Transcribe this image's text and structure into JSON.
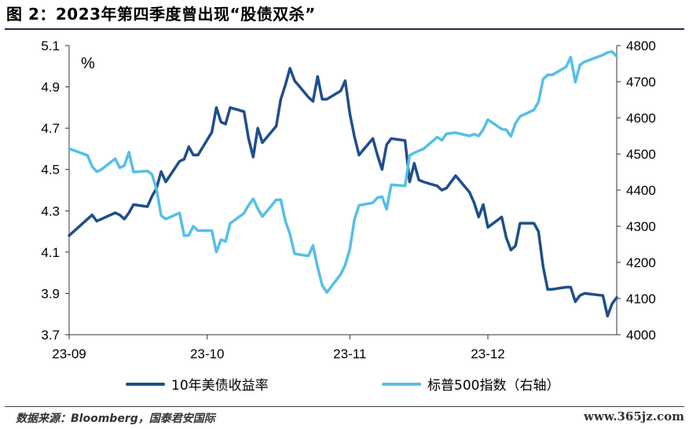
{
  "title": "图 2：2023年第四季度曾出现“股债双杀”",
  "source": "数据来源：Bloomberg，国泰君安国际",
  "watermark": "www.365jz.com",
  "chart_data": {
    "type": "line",
    "x_ticks": [
      "23-09",
      "23-10",
      "23-11",
      "23-12"
    ],
    "unit_label": "%",
    "y_left": {
      "min": 3.7,
      "max": 5.1,
      "ticks": [
        "3.7",
        "3.9",
        "4.1",
        "4.3",
        "4.5",
        "4.7",
        "4.9",
        "5.1"
      ]
    },
    "y_right": {
      "min": 4000,
      "max": 4800,
      "ticks": [
        "4000",
        "4100",
        "4200",
        "4300",
        "4400",
        "4500",
        "4600",
        "4700",
        "4800"
      ]
    },
    "colors": {
      "ust10y": "#1f4e8c",
      "spx": "#56bfe8"
    },
    "series": [
      {
        "name": "10年美债收益率",
        "axis": "left",
        "x": [
          "2023-09-01",
          "2023-09-05",
          "2023-09-06",
          "2023-09-07",
          "2023-09-08",
          "2023-09-11",
          "2023-09-12",
          "2023-09-13",
          "2023-09-14",
          "2023-09-15",
          "2023-09-18",
          "2023-09-19",
          "2023-09-20",
          "2023-09-21",
          "2023-09-22",
          "2023-09-25",
          "2023-09-26",
          "2023-09-27",
          "2023-09-28",
          "2023-09-29",
          "2023-10-02",
          "2023-10-03",
          "2023-10-04",
          "2023-10-05",
          "2023-10-06",
          "2023-10-09",
          "2023-10-10",
          "2023-10-11",
          "2023-10-12",
          "2023-10-13",
          "2023-10-16",
          "2023-10-17",
          "2023-10-18",
          "2023-10-19",
          "2023-10-20",
          "2023-10-23",
          "2023-10-24",
          "2023-10-25",
          "2023-10-26",
          "2023-10-27",
          "2023-10-30",
          "2023-10-31",
          "2023-11-01",
          "2023-11-02",
          "2023-11-03",
          "2023-11-06",
          "2023-11-07",
          "2023-11-08",
          "2023-11-09",
          "2023-11-10",
          "2023-11-13",
          "2023-11-14",
          "2023-11-15",
          "2023-11-16",
          "2023-11-17",
          "2023-11-20",
          "2023-11-21",
          "2023-11-22",
          "2023-11-24",
          "2023-11-27",
          "2023-11-28",
          "2023-11-29",
          "2023-11-30",
          "2023-12-01",
          "2023-12-04",
          "2023-12-05",
          "2023-12-06",
          "2023-12-07",
          "2023-12-08",
          "2023-12-11",
          "2023-12-12",
          "2023-12-13",
          "2023-12-14",
          "2023-12-15",
          "2023-12-18",
          "2023-12-19",
          "2023-12-20",
          "2023-12-21",
          "2023-12-22",
          "2023-12-26",
          "2023-12-27",
          "2023-12-28",
          "2023-12-29"
        ],
        "values": [
          4.18,
          4.26,
          4.28,
          4.25,
          4.26,
          4.29,
          4.28,
          4.26,
          4.29,
          4.33,
          4.32,
          4.37,
          4.41,
          4.49,
          4.44,
          4.54,
          4.55,
          4.61,
          4.57,
          4.57,
          4.68,
          4.8,
          4.73,
          4.72,
          4.8,
          4.78,
          4.65,
          4.56,
          4.7,
          4.63,
          4.71,
          4.84,
          4.91,
          4.99,
          4.93,
          4.85,
          4.83,
          4.95,
          4.84,
          4.84,
          4.88,
          4.93,
          4.77,
          4.66,
          4.57,
          4.65,
          4.57,
          4.5,
          4.62,
          4.65,
          4.64,
          4.44,
          4.53,
          4.45,
          4.44,
          4.42,
          4.4,
          4.41,
          4.47,
          4.39,
          4.34,
          4.27,
          4.33,
          4.22,
          4.27,
          4.17,
          4.11,
          4.13,
          4.24,
          4.24,
          4.2,
          4.03,
          3.92,
          3.92,
          3.93,
          3.93,
          3.86,
          3.89,
          3.9,
          3.89,
          3.79,
          3.85,
          3.88
        ]
      },
      {
        "name": "标普500指数（右轴）",
        "axis": "right",
        "x": [
          "2023-09-01",
          "2023-09-05",
          "2023-09-06",
          "2023-09-07",
          "2023-09-08",
          "2023-09-11",
          "2023-09-12",
          "2023-09-13",
          "2023-09-14",
          "2023-09-15",
          "2023-09-18",
          "2023-09-19",
          "2023-09-20",
          "2023-09-21",
          "2023-09-22",
          "2023-09-25",
          "2023-09-26",
          "2023-09-27",
          "2023-09-28",
          "2023-09-29",
          "2023-10-02",
          "2023-10-03",
          "2023-10-04",
          "2023-10-05",
          "2023-10-06",
          "2023-10-09",
          "2023-10-10",
          "2023-10-11",
          "2023-10-12",
          "2023-10-13",
          "2023-10-16",
          "2023-10-17",
          "2023-10-18",
          "2023-10-19",
          "2023-10-20",
          "2023-10-23",
          "2023-10-24",
          "2023-10-25",
          "2023-10-26",
          "2023-10-27",
          "2023-10-30",
          "2023-10-31",
          "2023-11-01",
          "2023-11-02",
          "2023-11-03",
          "2023-11-06",
          "2023-11-07",
          "2023-11-08",
          "2023-11-09",
          "2023-11-10",
          "2023-11-13",
          "2023-11-14",
          "2023-11-15",
          "2023-11-16",
          "2023-11-17",
          "2023-11-20",
          "2023-11-21",
          "2023-11-22",
          "2023-11-24",
          "2023-11-27",
          "2023-11-28",
          "2023-11-29",
          "2023-11-30",
          "2023-12-01",
          "2023-12-04",
          "2023-12-05",
          "2023-12-06",
          "2023-12-07",
          "2023-12-08",
          "2023-12-11",
          "2023-12-12",
          "2023-12-13",
          "2023-12-14",
          "2023-12-15",
          "2023-12-18",
          "2023-12-19",
          "2023-12-20",
          "2023-12-21",
          "2023-12-22",
          "2023-12-26",
          "2023-12-27",
          "2023-12-28",
          "2023-12-29"
        ],
        "values": [
          4515,
          4496,
          4465,
          4451,
          4457,
          4487,
          4462,
          4468,
          4505,
          4450,
          4453,
          4444,
          4402,
          4330,
          4320,
          4337,
          4274,
          4275,
          4300,
          4288,
          4288,
          4229,
          4263,
          4258,
          4308,
          4336,
          4358,
          4376,
          4349,
          4327,
          4373,
          4373,
          4314,
          4278,
          4224,
          4218,
          4247,
          4187,
          4137,
          4117,
          4167,
          4193,
          4237,
          4318,
          4358,
          4365,
          4379,
          4382,
          4347,
          4415,
          4412,
          4496,
          4503,
          4509,
          4514,
          4547,
          4538,
          4556,
          4559,
          4550,
          4555,
          4550,
          4568,
          4595,
          4569,
          4567,
          4549,
          4585,
          4604,
          4622,
          4644,
          4707,
          4719,
          4719,
          4741,
          4768,
          4699,
          4746,
          4755,
          4774,
          4781,
          4783,
          4770
        ]
      }
    ]
  }
}
